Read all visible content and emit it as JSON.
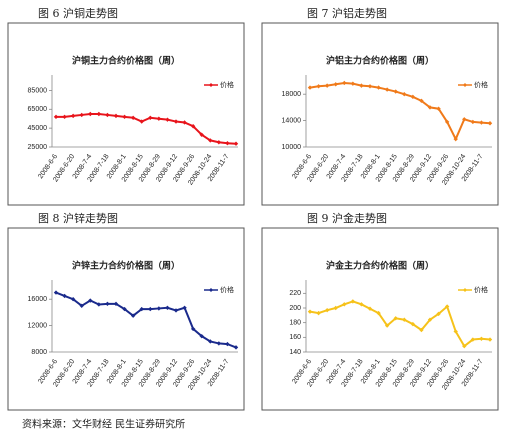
{
  "chart_data": [
    {
      "type": "line",
      "caption": "图 6  沪铜走势图",
      "title": "沪铜主力合约价格图（周）",
      "categories": [
        "2008-6-6",
        null,
        "2008-6-20",
        null,
        "2008-7-4",
        null,
        "2008-7-18",
        null,
        "2008-8-1",
        null,
        "2008-8-15",
        null,
        "2008-8-29",
        null,
        "2008-9-12",
        null,
        "2008-9-26",
        null,
        "2008-10-24",
        null,
        "2008-11-7",
        null
      ],
      "series": [
        {
          "name": "价格",
          "color": "#e8141b",
          "values": [
            57000,
            57000,
            58000,
            59000,
            60000,
            60000,
            59000,
            58000,
            57000,
            56000,
            52000,
            56000,
            55000,
            54000,
            52000,
            51000,
            47000,
            38000,
            32000,
            30000,
            29000,
            28500
          ]
        }
      ],
      "ylim": [
        25000,
        95000
      ],
      "yticks": [
        25000,
        45000,
        65000,
        85000
      ],
      "legend": "upper right"
    },
    {
      "type": "line",
      "caption": "图 7  沪铝走势图",
      "title": "沪铝主力合约价格图（周）",
      "categories": [
        "2008-6-6",
        null,
        "2008-6-20",
        null,
        "2008-7-4",
        null,
        "2008-7-18",
        null,
        "2008-8-1",
        null,
        "2008-8-15",
        null,
        "2008-8-29",
        null,
        "2008-9-12",
        null,
        "2008-9-26",
        null,
        "2008-10-24",
        null,
        "2008-11-7",
        null
      ],
      "series": [
        {
          "name": "价格",
          "color": "#f07a1a",
          "values": [
            19000,
            19200,
            19300,
            19500,
            19700,
            19600,
            19300,
            19200,
            19000,
            18700,
            18400,
            18000,
            17600,
            17000,
            16000,
            15800,
            13800,
            11200,
            14200,
            13800,
            13700,
            13600
          ]
        }
      ],
      "ylim": [
        10000,
        20000
      ],
      "yticks": [
        10000,
        14000,
        18000
      ],
      "legend": "upper right"
    },
    {
      "type": "line",
      "caption": "图 8  沪锌走势图",
      "title": "沪锌主力合约价格图（周）",
      "categories": [
        "2008-6-6",
        null,
        "2008-6-20",
        null,
        "2008-7-4",
        null,
        "2008-7-18",
        null,
        "2008-8-1",
        null,
        "2008-8-15",
        null,
        "2008-8-29",
        null,
        "2008-9-12",
        null,
        "2008-9-26",
        null,
        "2008-10-24",
        null,
        "2008-11-7",
        null
      ],
      "series": [
        {
          "name": "价格",
          "color": "#1a2a8c",
          "values": [
            17000,
            16500,
            16000,
            15000,
            15800,
            15200,
            15300,
            15300,
            14500,
            13500,
            14500,
            14500,
            14600,
            14700,
            14300,
            14700,
            11500,
            10400,
            9600,
            9300,
            9200,
            8700
          ]
        }
      ],
      "ylim": [
        8000,
        18000
      ],
      "yticks": [
        8000,
        12000,
        16000
      ],
      "legend": "upper right"
    },
    {
      "type": "line",
      "caption": "图 9  沪金走势图",
      "title": "沪金主力合约价格图（周）",
      "categories": [
        "2008-6-6",
        null,
        "2008-6-20",
        null,
        "2008-7-4",
        null,
        "2008-7-18",
        null,
        "2008-8-1",
        null,
        "2008-8-15",
        null,
        "2008-8-29",
        null,
        "2008-9-12",
        null,
        "2008-9-26",
        null,
        "2008-10-24",
        null,
        "2008-11-7",
        null
      ],
      "series": [
        {
          "name": "价格",
          "color": "#f6c21a",
          "values": [
            195,
            193,
            197,
            200,
            205,
            209,
            205,
            199,
            193,
            176,
            186,
            184,
            178,
            170,
            184,
            192,
            202,
            168,
            148,
            157,
            158,
            157
          ]
        }
      ],
      "ylim": [
        140,
        230
      ],
      "yticks": [
        140,
        160,
        180,
        200,
        220
      ],
      "legend": "upper right"
    }
  ],
  "source": "资料来源：文华财经  民生证券研究所"
}
